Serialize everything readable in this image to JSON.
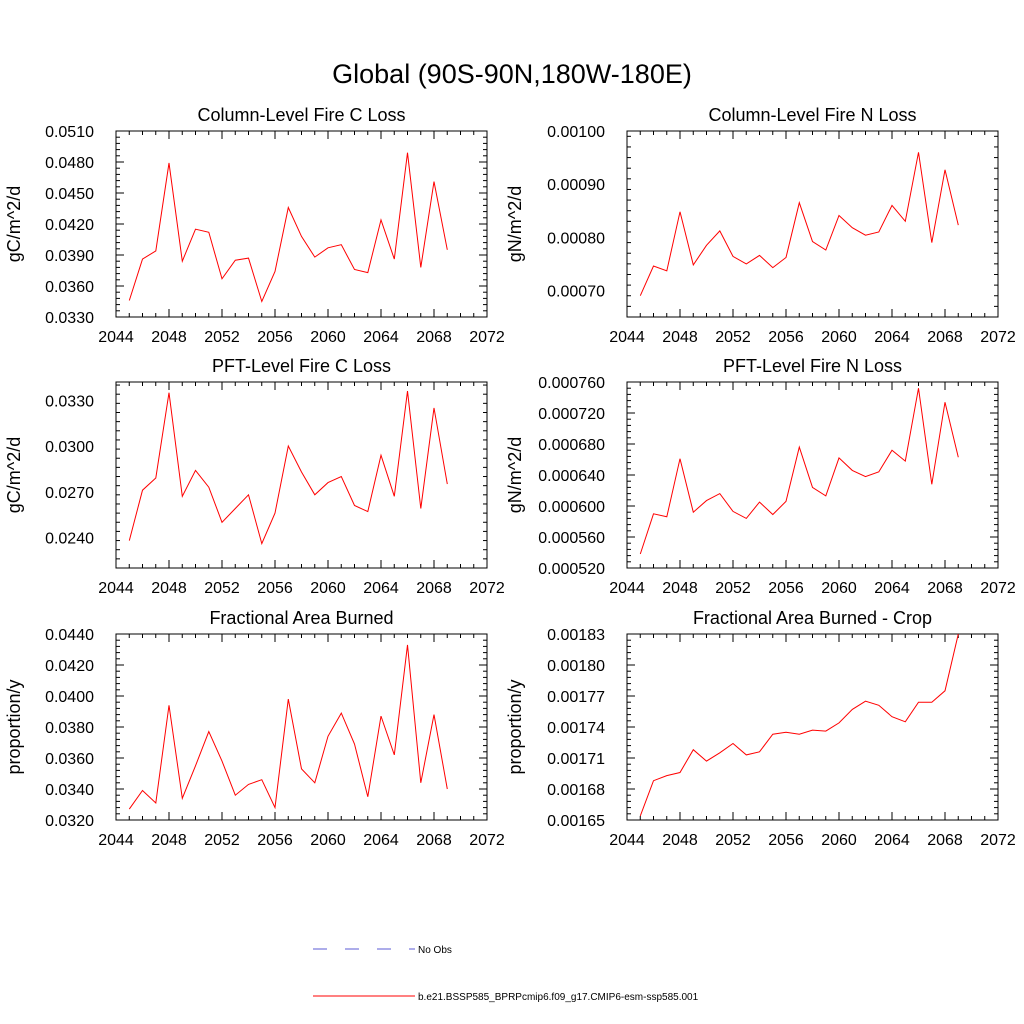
{
  "figure": {
    "title": "Global (90S-90N,180W-180E)"
  },
  "legend": {
    "position": "bottom-center",
    "entries": [
      {
        "label": "No Obs",
        "color": "#5b5bd6",
        "style": "dashed"
      },
      {
        "label": "b.e21.BSSP585_BPRPcmip6.f09_g17.CMIP6-esm-ssp585.001",
        "color": "#ff0000",
        "style": "solid"
      }
    ]
  },
  "chart_data": [
    {
      "type": "line",
      "title": "Column-Level Fire C Loss",
      "xlabel": "",
      "ylabel": "gC/m^2/d",
      "xlim": [
        2044,
        2072
      ],
      "ylim": [
        0.033,
        0.051
      ],
      "xticks": [
        2044,
        2048,
        2052,
        2056,
        2060,
        2064,
        2068,
        2072
      ],
      "xtick_labels": [
        "2044",
        "2048",
        "2052",
        "2056",
        "2060",
        "2064",
        "2068",
        "2072"
      ],
      "yticks": [
        0.033,
        0.036,
        0.039,
        0.042,
        0.045,
        0.048,
        0.051
      ],
      "ytick_labels": [
        "0.0330",
        "0.0360",
        "0.0390",
        "0.0420",
        "0.0450",
        "0.0480",
        "0.0510"
      ],
      "x": [
        2045,
        2046,
        2047,
        2048,
        2049,
        2050,
        2051,
        2052,
        2053,
        2054,
        2055,
        2056,
        2057,
        2058,
        2059,
        2060,
        2061,
        2062,
        2063,
        2064,
        2065,
        2066,
        2067,
        2068,
        2069
      ],
      "series": [
        {
          "color": "#ff0000",
          "values": [
            0.0346,
            0.0386,
            0.0394,
            0.0479,
            0.0384,
            0.0415,
            0.0412,
            0.0367,
            0.0385,
            0.0387,
            0.0345,
            0.0374,
            0.0436,
            0.0408,
            0.0388,
            0.0397,
            0.04,
            0.0376,
            0.0373,
            0.0424,
            0.0386,
            0.0489,
            0.0378,
            0.0461,
            0.0395
          ]
        }
      ]
    },
    {
      "type": "line",
      "title": "Column-Level Fire N Loss",
      "xlabel": "",
      "ylabel": "gN/m^2/d",
      "xlim": [
        2044,
        2072
      ],
      "ylim": [
        0.00065,
        0.001
      ],
      "xticks": [
        2044,
        2048,
        2052,
        2056,
        2060,
        2064,
        2068,
        2072
      ],
      "xtick_labels": [
        "2044",
        "2048",
        "2052",
        "2056",
        "2060",
        "2064",
        "2068",
        "2072"
      ],
      "yticks": [
        0.0007,
        0.0008,
        0.0009,
        0.001
      ],
      "ytick_labels": [
        "0.00070",
        "0.00080",
        "0.00090",
        "0.00100"
      ],
      "x": [
        2045,
        2046,
        2047,
        2048,
        2049,
        2050,
        2051,
        2052,
        2053,
        2054,
        2055,
        2056,
        2057,
        2058,
        2059,
        2060,
        2061,
        2062,
        2063,
        2064,
        2065,
        2066,
        2067,
        2068,
        2069
      ],
      "series": [
        {
          "color": "#ff0000",
          "values": [
            0.00069,
            0.000746,
            0.000737,
            0.000848,
            0.000748,
            0.000785,
            0.000812,
            0.000764,
            0.00075,
            0.000766,
            0.000743,
            0.000762,
            0.000865,
            0.000792,
            0.000776,
            0.000841,
            0.000818,
            0.000804,
            0.00081,
            0.00086,
            0.00083,
            0.00096,
            0.00079,
            0.000927,
            0.000823
          ]
        }
      ]
    },
    {
      "type": "line",
      "title": "PFT-Level Fire C Loss",
      "xlabel": "",
      "ylabel": "gC/m^2/d",
      "xlim": [
        2044,
        2072
      ],
      "ylim": [
        0.022,
        0.0342
      ],
      "xticks": [
        2044,
        2048,
        2052,
        2056,
        2060,
        2064,
        2068,
        2072
      ],
      "xtick_labels": [
        "2044",
        "2048",
        "2052",
        "2056",
        "2060",
        "2064",
        "2068",
        "2072"
      ],
      "yticks": [
        0.024,
        0.027,
        0.03,
        0.033
      ],
      "ytick_labels": [
        "0.0240",
        "0.0270",
        "0.0300",
        "0.0330"
      ],
      "x": [
        2045,
        2046,
        2047,
        2048,
        2049,
        2050,
        2051,
        2052,
        2053,
        2054,
        2055,
        2056,
        2057,
        2058,
        2059,
        2060,
        2061,
        2062,
        2063,
        2064,
        2065,
        2066,
        2067,
        2068,
        2069
      ],
      "series": [
        {
          "color": "#ff0000",
          "values": [
            0.0238,
            0.0271,
            0.0279,
            0.0335,
            0.0267,
            0.0284,
            0.0273,
            0.025,
            0.0259,
            0.0268,
            0.0236,
            0.0256,
            0.03,
            0.0283,
            0.0268,
            0.0276,
            0.028,
            0.0261,
            0.0257,
            0.0294,
            0.0267,
            0.0336,
            0.0259,
            0.0325,
            0.0275
          ]
        }
      ]
    },
    {
      "type": "line",
      "title": "PFT-Level Fire N Loss",
      "xlabel": "",
      "ylabel": "gN/m^2/d",
      "xlim": [
        2044,
        2072
      ],
      "ylim": [
        0.00052,
        0.00076
      ],
      "xticks": [
        2044,
        2048,
        2052,
        2056,
        2060,
        2064,
        2068,
        2072
      ],
      "xtick_labels": [
        "2044",
        "2048",
        "2052",
        "2056",
        "2060",
        "2064",
        "2068",
        "2072"
      ],
      "yticks": [
        0.00052,
        0.00056,
        0.0006,
        0.00064,
        0.00068,
        0.00072,
        0.00076
      ],
      "ytick_labels": [
        "0.000520",
        "0.000560",
        "0.000600",
        "0.000640",
        "0.000680",
        "0.000720",
        "0.000760"
      ],
      "x": [
        2045,
        2046,
        2047,
        2048,
        2049,
        2050,
        2051,
        2052,
        2053,
        2054,
        2055,
        2056,
        2057,
        2058,
        2059,
        2060,
        2061,
        2062,
        2063,
        2064,
        2065,
        2066,
        2067,
        2068,
        2069
      ],
      "series": [
        {
          "color": "#ff0000",
          "values": [
            0.000538,
            0.00059,
            0.000586,
            0.000661,
            0.000592,
            0.000607,
            0.000616,
            0.000593,
            0.000584,
            0.000605,
            0.000589,
            0.000606,
            0.000676,
            0.000624,
            0.000613,
            0.000662,
            0.000646,
            0.000638,
            0.000644,
            0.000672,
            0.000658,
            0.000752,
            0.000628,
            0.000734,
            0.000663
          ]
        }
      ]
    },
    {
      "type": "line",
      "title": "Fractional Area Burned",
      "xlabel": "",
      "ylabel": "proportion/y",
      "xlim": [
        2044,
        2072
      ],
      "ylim": [
        0.032,
        0.044
      ],
      "xticks": [
        2044,
        2048,
        2052,
        2056,
        2060,
        2064,
        2068,
        2072
      ],
      "xtick_labels": [
        "2044",
        "2048",
        "2052",
        "2056",
        "2060",
        "2064",
        "2068",
        "2072"
      ],
      "yticks": [
        0.032,
        0.034,
        0.036,
        0.038,
        0.04,
        0.042,
        0.044
      ],
      "ytick_labels": [
        "0.0320",
        "0.0340",
        "0.0360",
        "0.0380",
        "0.0400",
        "0.0420",
        "0.0440"
      ],
      "x": [
        2045,
        2046,
        2047,
        2048,
        2049,
        2050,
        2051,
        2052,
        2053,
        2054,
        2055,
        2056,
        2057,
        2058,
        2059,
        2060,
        2061,
        2062,
        2063,
        2064,
        2065,
        2066,
        2067,
        2068,
        2069
      ],
      "series": [
        {
          "color": "#ff0000",
          "values": [
            0.0327,
            0.0339,
            0.0331,
            0.0394,
            0.0334,
            0.0355,
            0.0377,
            0.0358,
            0.0336,
            0.0343,
            0.0346,
            0.0328,
            0.0398,
            0.0353,
            0.0344,
            0.0374,
            0.0389,
            0.0369,
            0.0335,
            0.0387,
            0.0362,
            0.0433,
            0.0344,
            0.0388,
            0.034
          ]
        }
      ]
    },
    {
      "type": "line",
      "title": "Fractional Area Burned - Crop",
      "xlabel": "",
      "ylabel": "proportion/y",
      "xlim": [
        2044,
        2072
      ],
      "ylim": [
        0.00165,
        0.00183
      ],
      "xticks": [
        2044,
        2048,
        2052,
        2056,
        2060,
        2064,
        2068,
        2072
      ],
      "xtick_labels": [
        "2044",
        "2048",
        "2052",
        "2056",
        "2060",
        "2064",
        "2068",
        "2072"
      ],
      "yticks": [
        0.00165,
        0.00168,
        0.00171,
        0.00174,
        0.00177,
        0.0018,
        0.00183
      ],
      "ytick_labels": [
        "0.00165",
        "0.00168",
        "0.00171",
        "0.00174",
        "0.00177",
        "0.00180",
        "0.00183"
      ],
      "x": [
        2045,
        2046,
        2047,
        2048,
        2049,
        2050,
        2051,
        2052,
        2053,
        2054,
        2055,
        2056,
        2057,
        2058,
        2059,
        2060,
        2061,
        2062,
        2063,
        2064,
        2065,
        2066,
        2067,
        2068,
        2069
      ],
      "series": [
        {
          "color": "#ff0000",
          "values": [
            0.001654,
            0.001688,
            0.001693,
            0.001696,
            0.001718,
            0.001707,
            0.001715,
            0.001724,
            0.001713,
            0.001716,
            0.001733,
            0.001735,
            0.001733,
            0.001737,
            0.001736,
            0.001744,
            0.001757,
            0.001765,
            0.001761,
            0.00175,
            0.001745,
            0.001764,
            0.001764,
            0.001775,
            0.00183
          ]
        }
      ]
    }
  ]
}
